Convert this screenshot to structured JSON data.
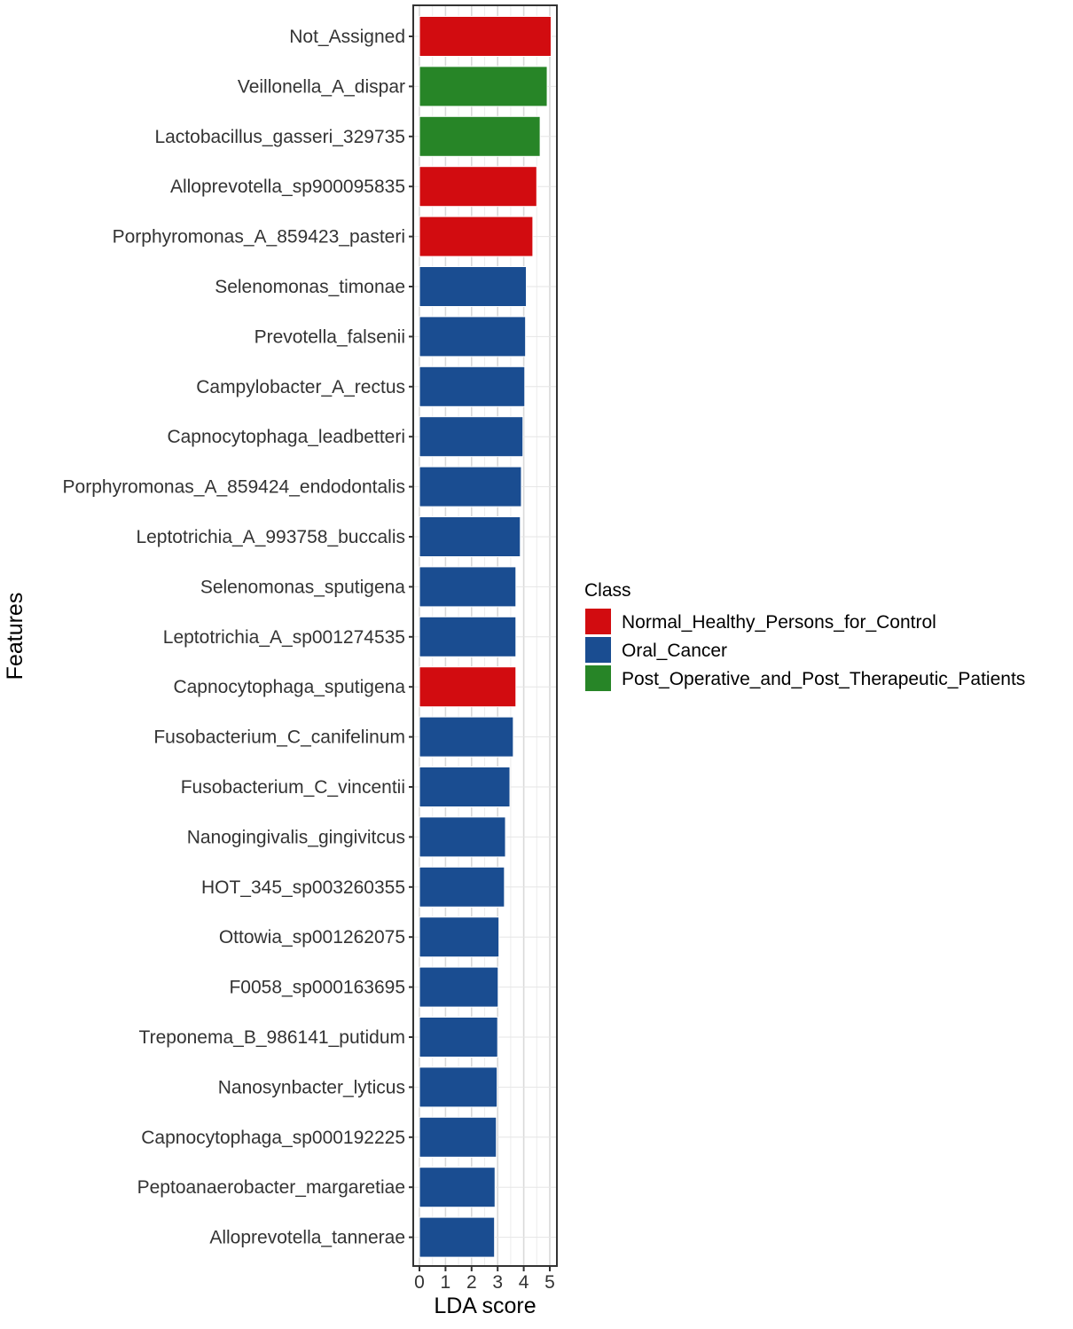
{
  "chart_data": {
    "type": "bar",
    "orientation": "horizontal",
    "xlabel": "LDA score",
    "ylabel": "Features",
    "xlim": [
      0,
      5.3
    ],
    "x_ticks": [
      0,
      1,
      2,
      3,
      4,
      5
    ],
    "grid": true,
    "legend_position": "right",
    "legend_title": "Class",
    "classes": [
      {
        "name": "Normal_Healthy_Persons_for_Control",
        "color": "#d20c10"
      },
      {
        "name": "Oral_Cancer",
        "color": "#1a4d91"
      },
      {
        "name": "Post_Operative_and_Post_Therapeutic_Patients",
        "color": "#278527"
      }
    ],
    "bars": [
      {
        "feature": "Not_Assigned",
        "value": 5.05,
        "class": "Normal_Healthy_Persons_for_Control"
      },
      {
        "feature": "Veillonella_A_dispar",
        "value": 4.9,
        "class": "Post_Operative_and_Post_Therapeutic_Patients"
      },
      {
        "feature": "Lactobacillus_gasseri_329735",
        "value": 4.63,
        "class": "Post_Operative_and_Post_Therapeutic_Patients"
      },
      {
        "feature": "Alloprevotella_sp900095835",
        "value": 4.5,
        "class": "Normal_Healthy_Persons_for_Control"
      },
      {
        "feature": "Porphyromonas_A_859423_pasteri",
        "value": 4.35,
        "class": "Normal_Healthy_Persons_for_Control"
      },
      {
        "feature": "Selenomonas_timonae",
        "value": 4.1,
        "class": "Oral_Cancer"
      },
      {
        "feature": "Prevotella_falsenii",
        "value": 4.07,
        "class": "Oral_Cancer"
      },
      {
        "feature": "Campylobacter_A_rectus",
        "value": 4.04,
        "class": "Oral_Cancer"
      },
      {
        "feature": "Capnocytophaga_leadbetteri",
        "value": 3.97,
        "class": "Oral_Cancer"
      },
      {
        "feature": "Porphyromonas_A_859424_endodontalis",
        "value": 3.91,
        "class": "Oral_Cancer"
      },
      {
        "feature": "Leptotrichia_A_993758_buccalis",
        "value": 3.87,
        "class": "Oral_Cancer"
      },
      {
        "feature": "Selenomonas_sputigena",
        "value": 3.7,
        "class": "Oral_Cancer"
      },
      {
        "feature": "Leptotrichia_A_sp001274535",
        "value": 3.7,
        "class": "Oral_Cancer"
      },
      {
        "feature": "Capnocytophaga_sputigena",
        "value": 3.7,
        "class": "Normal_Healthy_Persons_for_Control"
      },
      {
        "feature": "Fusobacterium_C_canifelinum",
        "value": 3.6,
        "class": "Oral_Cancer"
      },
      {
        "feature": "Fusobacterium_C_vincentii",
        "value": 3.47,
        "class": "Oral_Cancer"
      },
      {
        "feature": "Nanogingivalis_gingivitcus",
        "value": 3.3,
        "class": "Oral_Cancer"
      },
      {
        "feature": "HOT_345_sp003260355",
        "value": 3.26,
        "class": "Oral_Cancer"
      },
      {
        "feature": "Ottowia_sp001262075",
        "value": 3.05,
        "class": "Oral_Cancer"
      },
      {
        "feature": "F0058_sp000163695",
        "value": 3.02,
        "class": "Oral_Cancer"
      },
      {
        "feature": "Treponema_B_986141_putidum",
        "value": 3.0,
        "class": "Oral_Cancer"
      },
      {
        "feature": "Nanosynbacter_lyticus",
        "value": 2.98,
        "class": "Oral_Cancer"
      },
      {
        "feature": "Capnocytophaga_sp000192225",
        "value": 2.95,
        "class": "Oral_Cancer"
      },
      {
        "feature": "Peptoanaerobacter_margaretiae",
        "value": 2.9,
        "class": "Oral_Cancer"
      },
      {
        "feature": "Alloprevotella_tannerae",
        "value": 2.88,
        "class": "Oral_Cancer"
      }
    ]
  }
}
